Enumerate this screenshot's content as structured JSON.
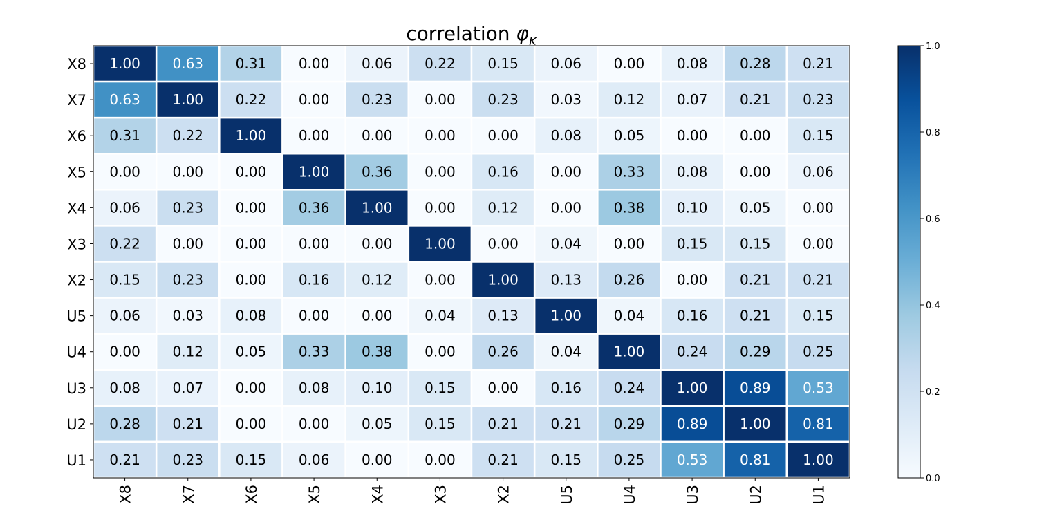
{
  "chart_data": {
    "type": "heatmap",
    "title": "correlation φK",
    "title_main": "correlation ",
    "title_symbol": "φ",
    "title_subscript": "K",
    "rows": [
      "X8",
      "X7",
      "X6",
      "X5",
      "X4",
      "X3",
      "X2",
      "U5",
      "U4",
      "U3",
      "U2",
      "U1"
    ],
    "columns": [
      "X8",
      "X7",
      "X6",
      "X5",
      "X4",
      "X3",
      "X2",
      "U5",
      "U4",
      "U3",
      "U2",
      "U1"
    ],
    "values": [
      [
        1.0,
        0.63,
        0.31,
        0.0,
        0.06,
        0.22,
        0.15,
        0.06,
        0.0,
        0.08,
        0.28,
        0.21
      ],
      [
        0.63,
        1.0,
        0.22,
        0.0,
        0.23,
        0.0,
        0.23,
        0.03,
        0.12,
        0.07,
        0.21,
        0.23
      ],
      [
        0.31,
        0.22,
        1.0,
        0.0,
        0.0,
        0.0,
        0.0,
        0.08,
        0.05,
        0.0,
        0.0,
        0.15
      ],
      [
        0.0,
        0.0,
        0.0,
        1.0,
        0.36,
        0.0,
        0.16,
        0.0,
        0.33,
        0.08,
        0.0,
        0.06
      ],
      [
        0.06,
        0.23,
        0.0,
        0.36,
        1.0,
        0.0,
        0.12,
        0.0,
        0.38,
        0.1,
        0.05,
        0.0
      ],
      [
        0.22,
        0.0,
        0.0,
        0.0,
        0.0,
        1.0,
        0.0,
        0.04,
        0.0,
        0.15,
        0.15,
        0.0
      ],
      [
        0.15,
        0.23,
        0.0,
        0.16,
        0.12,
        0.0,
        1.0,
        0.13,
        0.26,
        0.0,
        0.21,
        0.21
      ],
      [
        0.06,
        0.03,
        0.08,
        0.0,
        0.0,
        0.04,
        0.13,
        1.0,
        0.04,
        0.16,
        0.21,
        0.15
      ],
      [
        0.0,
        0.12,
        0.05,
        0.33,
        0.38,
        0.0,
        0.26,
        0.04,
        1.0,
        0.24,
        0.29,
        0.25
      ],
      [
        0.08,
        0.07,
        0.0,
        0.08,
        0.1,
        0.15,
        0.0,
        0.16,
        0.24,
        1.0,
        0.89,
        0.53
      ],
      [
        0.28,
        0.21,
        0.0,
        0.0,
        0.05,
        0.15,
        0.21,
        0.21,
        0.29,
        0.89,
        1.0,
        0.81
      ],
      [
        0.21,
        0.23,
        0.15,
        0.06,
        0.0,
        0.0,
        0.21,
        0.15,
        0.25,
        0.53,
        0.81,
        1.0
      ]
    ],
    "value_format": "2 decimals",
    "colormap": "Blues",
    "color_range": [
      0.0,
      1.0
    ],
    "colorbar_ticks": [
      "0.0",
      "0.2",
      "0.4",
      "0.6",
      "0.8",
      "1.0"
    ],
    "colorbar_tick_values": [
      0.0,
      0.2,
      0.4,
      0.6,
      0.8,
      1.0
    ],
    "colorbar_placement": "right",
    "cell_border_color": "#ffffff",
    "text_color_dark_cells": "#ffffff",
    "text_color_light_cells": "#000000",
    "x_tick_rotation": "vertical",
    "grid": false
  }
}
